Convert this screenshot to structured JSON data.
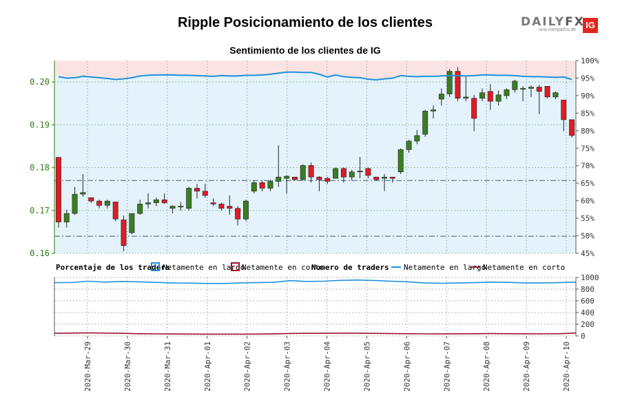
{
  "header": {
    "title": "Ripple Posicionamiento de los clientes",
    "subtitle": "Sentimiento de los clientes de IG"
  },
  "logo": {
    "brand_a": "DAILY",
    "brand_b": "FX",
    "tagline": "una compañía de",
    "badge": "IG"
  },
  "colors": {
    "up": "#3a7d22",
    "down": "#e01b24",
    "long": "#1e90dc",
    "short": "#a01030",
    "long_bg": "#e3f2fb",
    "short_bg": "#fbe3e3",
    "axis_left": "#2e7d16"
  },
  "chart_data": [
    {
      "type": "candlestick",
      "title": "Sentimiento de los clientes de IG",
      "ylim": [
        0.16,
        0.205
      ],
      "y_ticks": [
        "0.16",
        "0.17",
        "0.18",
        "0.19",
        "0.20"
      ],
      "y2_ticks": [
        "45%",
        "50%",
        "55%",
        "60%",
        "65%",
        "70%",
        "75%",
        "80%",
        "85%",
        "90%",
        "95%",
        "100%"
      ],
      "y2lim": [
        45,
        100
      ],
      "ref_lines": [
        0.164,
        0.177
      ],
      "x_labels": [
        "2020-Mar-29",
        "2020-Mar-30",
        "2020-Mar-31",
        "2020-Apr-01",
        "2020-Apr-02",
        "2020-Apr-03",
        "2020-Apr-04",
        "2020-Apr-05",
        "2020-Apr-06",
        "2020-Apr-07",
        "2020-Apr-08",
        "2020-Apr-09",
        "2020-Apr-10"
      ],
      "candles": [
        [
          0.1824,
          0.1824,
          0.166,
          0.1673
        ],
        [
          0.1673,
          0.1702,
          0.166,
          0.1693
        ],
        [
          0.1693,
          0.1755,
          0.169,
          0.1738
        ],
        [
          0.1738,
          0.1785,
          0.1732,
          0.1742
        ],
        [
          0.173,
          0.173,
          0.1718,
          0.1722
        ],
        [
          0.1722,
          0.1725,
          0.1705,
          0.1712
        ],
        [
          0.1712,
          0.1725,
          0.1705,
          0.1722
        ],
        [
          0.172,
          0.172,
          0.1675,
          0.168
        ],
        [
          0.1678,
          0.1688,
          0.1605,
          0.1618
        ],
        [
          0.1648,
          0.169,
          0.1645,
          0.1693
        ],
        [
          0.1693,
          0.1725,
          0.169,
          0.1715
        ],
        [
          0.1715,
          0.174,
          0.1705,
          0.1718
        ],
        [
          0.1718,
          0.173,
          0.171,
          0.1725
        ],
        [
          0.1725,
          0.174,
          0.1715,
          0.1718
        ],
        [
          0.1705,
          0.1712,
          0.1693,
          0.171
        ],
        [
          0.1708,
          0.172,
          0.17,
          0.171
        ],
        [
          0.1705,
          0.1755,
          0.17,
          0.1752
        ],
        [
          0.1752,
          0.1762,
          0.1728,
          0.1745
        ],
        [
          0.1745,
          0.1762,
          0.173,
          0.1735
        ],
        [
          0.1718,
          0.1728,
          0.171,
          0.1715
        ],
        [
          0.1715,
          0.1718,
          0.17,
          0.1705
        ],
        [
          0.171,
          0.1735,
          0.169,
          0.1705
        ],
        [
          0.1705,
          0.171,
          0.1665,
          0.168
        ],
        [
          0.168,
          0.1725,
          0.1675,
          0.1722
        ],
        [
          0.1745,
          0.177,
          0.174,
          0.1765
        ],
        [
          0.1765,
          0.177,
          0.1745,
          0.1752
        ],
        [
          0.1752,
          0.1772,
          0.1745,
          0.1768
        ],
        [
          0.1768,
          0.1852,
          0.1755,
          0.1778
        ],
        [
          0.1775,
          0.1782,
          0.174,
          0.178
        ],
        [
          0.1778,
          0.1778,
          0.177,
          0.1772
        ],
        [
          0.1772,
          0.1808,
          0.177,
          0.1805
        ],
        [
          0.1805,
          0.1812,
          0.1765,
          0.1778
        ],
        [
          0.1778,
          0.178,
          0.1745,
          0.1772
        ],
        [
          0.1775,
          0.1778,
          0.1762,
          0.1768
        ],
        [
          0.1775,
          0.18,
          0.1775,
          0.1798
        ],
        [
          0.1798,
          0.18,
          0.1765,
          0.1778
        ],
        [
          0.1778,
          0.1795,
          0.177,
          0.179
        ],
        [
          0.179,
          0.1825,
          0.1775,
          0.1792
        ],
        [
          0.1798,
          0.18,
          0.1775,
          0.1782
        ],
        [
          0.1778,
          0.1778,
          0.177,
          0.1772
        ],
        [
          0.1775,
          0.1785,
          0.1745,
          0.1778
        ],
        [
          0.1778,
          0.1778,
          0.1765,
          0.1775
        ],
        [
          0.179,
          0.1845,
          0.1785,
          0.1842
        ],
        [
          0.1842,
          0.1865,
          0.1835,
          0.1862
        ],
        [
          0.1862,
          0.1888,
          0.1855,
          0.1875
        ],
        [
          0.1878,
          0.1935,
          0.1872,
          0.1932
        ],
        [
          0.1932,
          0.1945,
          0.1915,
          0.1935
        ],
        [
          0.196,
          0.1985,
          0.1945,
          0.1972
        ],
        [
          0.1972,
          0.203,
          0.1965,
          0.2025
        ],
        [
          0.2025,
          0.2035,
          0.1955,
          0.1962
        ],
        [
          0.1962,
          0.2015,
          0.1955,
          0.1965
        ],
        [
          0.1962,
          0.197,
          0.1885,
          0.1915
        ],
        [
          0.1962,
          0.1985,
          0.1955,
          0.1975
        ],
        [
          0.1978,
          0.1995,
          0.1935,
          0.1955
        ],
        [
          0.1955,
          0.198,
          0.1945,
          0.197
        ],
        [
          0.1968,
          0.1985,
          0.196,
          0.1982
        ],
        [
          0.1982,
          0.2005,
          0.1975,
          0.2002
        ],
        [
          0.1985,
          0.199,
          0.1955,
          0.1985
        ],
        [
          0.1985,
          0.1992,
          0.1965,
          0.1988
        ],
        [
          0.1988,
          0.1993,
          0.1925,
          0.1978
        ],
        [
          0.199,
          0.199,
          0.1962,
          0.1965
        ],
        [
          0.1965,
          0.1978,
          0.196,
          0.1975
        ],
        [
          0.1958,
          0.1958,
          0.1885,
          0.1912
        ],
        [
          0.1912,
          0.1912,
          0.187,
          0.1875
        ]
      ],
      "net_long_pct": [
        95.4,
        95.0,
        95.1,
        95.5,
        95.3,
        95.1,
        94.9,
        94.6,
        94.8,
        95.1,
        95.6,
        95.8,
        95.9,
        95.9,
        95.9,
        95.8,
        95.8,
        95.7,
        95.6,
        95.5,
        95.7,
        95.6,
        95.6,
        95.8,
        95.8,
        95.9,
        96.1,
        96.4,
        96.7,
        96.7,
        96.6,
        96.6,
        96.1,
        95.3,
        95.9,
        95.4,
        95.2,
        95.1,
        94.7,
        94.5,
        94.8,
        95.0,
        95.7,
        95.5,
        95.4,
        95.5,
        95.5,
        95.6,
        95.7,
        95.7,
        95.6,
        95.7,
        95.9,
        95.9,
        95.8,
        95.8,
        95.7,
        95.5,
        95.4,
        95.4,
        95.3,
        95.2,
        95.3,
        94.6
      ]
    },
    {
      "type": "line",
      "title": "Numero de traders",
      "ylim": [
        0,
        1000
      ],
      "y_ticks": [
        "0",
        "200",
        "400",
        "600",
        "800",
        "1000"
      ],
      "series": [
        {
          "name": "Netamente en largo",
          "values": [
            910,
            912,
            935,
            920,
            930,
            925,
            915,
            905,
            902,
            898,
            895,
            905,
            910,
            915,
            945,
            930,
            935,
            950,
            955,
            948,
            935,
            925,
            905,
            900,
            905,
            910,
            920,
            915,
            905,
            905,
            910,
            920
          ]
        },
        {
          "name": "Netamente en corto",
          "values": [
            45,
            48,
            52,
            47,
            45,
            38,
            35,
            33,
            32,
            30,
            30,
            30,
            32,
            34,
            42,
            45,
            45,
            46,
            46,
            44,
            40,
            38,
            35,
            34,
            36,
            38,
            40,
            38,
            36,
            35,
            38,
            50
          ]
        }
      ]
    }
  ],
  "legend": {
    "pct_title": "Porcentaje de los traders",
    "pct_long": "Netamente en largo",
    "pct_short": "Netamente en corto",
    "count_title": "Numero de traders",
    "count_long": "Netamente en largo",
    "count_short": "Netamente en corto"
  }
}
